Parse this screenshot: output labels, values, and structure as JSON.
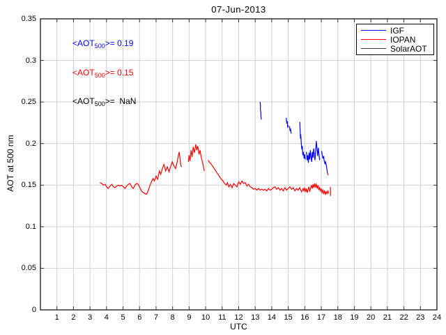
{
  "title": "07-Jun-2013",
  "axes": {
    "xlabel": "UTC",
    "ylabel": "AOT at 500 nm",
    "xlim": [
      0,
      24
    ],
    "ylim": [
      0,
      0.35
    ],
    "xticks": [
      1,
      2,
      3,
      4,
      5,
      6,
      7,
      8,
      9,
      10,
      11,
      12,
      13,
      14,
      15,
      16,
      17,
      18,
      19,
      20,
      21,
      22,
      23,
      24
    ],
    "yticks": [
      0,
      0.05,
      0.1,
      0.15,
      0.2,
      0.25,
      0.3,
      0.35
    ],
    "yticklabels": [
      "0",
      "0.05",
      "0.1",
      "0.15",
      "0.2",
      "0.25",
      "0.3",
      "0.35"
    ],
    "grid_color": "#d0d0d0",
    "frame_color": "#333333",
    "background": "#ffffff"
  },
  "legend": {
    "position": "top-right",
    "items": [
      {
        "label": "IGF",
        "color": "#0000ff"
      },
      {
        "label": "IOPAN",
        "color": "#ff0000"
      },
      {
        "label": "SolarAOT",
        "color": "#404040"
      }
    ]
  },
  "annotations": [
    {
      "series": "IGF",
      "pre": "<AOT",
      "sub": "500",
      "post": ">= 0.19",
      "color": "#0000ff"
    },
    {
      "series": "IOPAN",
      "pre": "<AOT",
      "sub": "500",
      "post": ">= 0.15",
      "color": "#ff0000"
    },
    {
      "series": "SolarAOT",
      "pre": "<AOT",
      "sub": "500",
      "post": ">=  NaN",
      "color": "#000000"
    }
  ],
  "chart_data": {
    "type": "line",
    "title": "07-Jun-2013",
    "xlabel": "UTC",
    "ylabel": "AOT at 500 nm",
    "xlim": [
      0,
      24
    ],
    "ylim": [
      0,
      0.35
    ],
    "grid": true,
    "legend_position": "top-right",
    "series": [
      {
        "name": "IGF",
        "color": "#0000ff",
        "mean_aot_500": 0.19,
        "segments": [
          [
            [
              13.3,
              0.25
            ],
            [
              13.32,
              0.245
            ],
            [
              13.31,
              0.241
            ],
            [
              13.34,
              0.237
            ],
            [
              13.35,
              0.232
            ],
            [
              13.37,
              0.229
            ]
          ],
          [
            [
              14.88,
              0.231
            ],
            [
              14.91,
              0.224
            ],
            [
              14.94,
              0.227
            ],
            [
              14.97,
              0.219
            ],
            [
              15.0,
              0.222
            ]
          ],
          [
            [
              15.08,
              0.221
            ],
            [
              15.11,
              0.215
            ],
            [
              15.14,
              0.218
            ],
            [
              15.18,
              0.212
            ]
          ],
          [
            [
              15.7,
              0.226
            ],
            [
              15.72,
              0.215
            ],
            [
              15.74,
              0.206
            ],
            [
              15.76,
              0.211
            ],
            [
              15.79,
              0.199
            ],
            [
              15.82,
              0.193
            ],
            [
              15.85,
              0.197
            ],
            [
              15.88,
              0.186
            ],
            [
              15.92,
              0.19
            ],
            [
              15.96,
              0.182
            ],
            [
              16.0,
              0.187
            ],
            [
              16.04,
              0.181
            ]
          ],
          [
            [
              16.1,
              0.19
            ],
            [
              16.14,
              0.18
            ],
            [
              16.18,
              0.186
            ],
            [
              16.22,
              0.177
            ],
            [
              16.26,
              0.189
            ],
            [
              16.3,
              0.181
            ],
            [
              16.34,
              0.192
            ],
            [
              16.38,
              0.184
            ],
            [
              16.42,
              0.178
            ],
            [
              16.46,
              0.19
            ],
            [
              16.5,
              0.183
            ],
            [
              16.54,
              0.194
            ],
            [
              16.58,
              0.186
            ],
            [
              16.62,
              0.18
            ],
            [
              16.66,
              0.192
            ],
            [
              16.7,
              0.203
            ],
            [
              16.74,
              0.194
            ],
            [
              16.78,
              0.185
            ],
            [
              16.82,
              0.195
            ],
            [
              16.86,
              0.187
            ],
            [
              16.9,
              0.18
            ]
          ],
          [
            [
              17.02,
              0.191
            ],
            [
              17.06,
              0.186
            ],
            [
              17.1,
              0.182
            ],
            [
              17.14,
              0.185
            ],
            [
              17.18,
              0.179
            ],
            [
              17.22,
              0.176
            ],
            [
              17.26,
              0.178
            ],
            [
              17.3,
              0.174
            ],
            [
              17.33,
              0.17
            ],
            [
              17.36,
              0.166
            ],
            [
              17.38,
              0.164
            ]
          ]
        ]
      },
      {
        "name": "IOPAN",
        "color": "#ff0000",
        "mean_aot_500": 0.15,
        "segments": [
          [
            [
              3.6,
              0.153
            ],
            [
              3.72,
              0.152
            ],
            [
              3.8,
              0.15
            ],
            [
              3.92,
              0.151
            ],
            [
              4.0,
              0.148
            ],
            [
              4.1,
              0.146
            ],
            [
              4.22,
              0.149
            ],
            [
              4.32,
              0.151
            ],
            [
              4.42,
              0.148
            ],
            [
              4.52,
              0.147
            ],
            [
              4.62,
              0.149
            ],
            [
              4.72,
              0.15
            ],
            [
              4.82,
              0.149
            ],
            [
              4.92,
              0.15
            ],
            [
              5.02,
              0.148
            ],
            [
              5.12,
              0.146
            ],
            [
              5.22,
              0.149
            ],
            [
              5.32,
              0.151
            ],
            [
              5.42,
              0.152
            ],
            [
              5.52,
              0.148
            ],
            [
              5.62,
              0.146
            ],
            [
              5.72,
              0.15
            ],
            [
              5.82,
              0.152
            ],
            [
              5.92,
              0.151
            ],
            [
              6.02,
              0.147
            ],
            [
              6.12,
              0.143
            ],
            [
              6.22,
              0.141
            ],
            [
              6.32,
              0.14
            ],
            [
              6.42,
              0.139
            ],
            [
              6.52,
              0.143
            ],
            [
              6.62,
              0.149
            ],
            [
              6.72,
              0.154
            ],
            [
              6.82,
              0.158
            ],
            [
              6.9,
              0.155
            ],
            [
              7.0,
              0.161
            ],
            [
              7.1,
              0.157
            ],
            [
              7.2,
              0.167
            ],
            [
              7.28,
              0.163
            ],
            [
              7.38,
              0.17
            ],
            [
              7.48,
              0.175
            ],
            [
              7.58,
              0.167
            ],
            [
              7.68,
              0.172
            ],
            [
              7.78,
              0.166
            ],
            [
              7.88,
              0.172
            ],
            [
              7.98,
              0.178
            ],
            [
              8.08,
              0.173
            ],
            [
              8.18,
              0.17
            ],
            [
              8.28,
              0.178
            ],
            [
              8.4,
              0.19
            ],
            [
              8.5,
              0.174
            ],
            [
              8.55,
              0.172
            ]
          ],
          [
            [
              8.95,
              0.178
            ],
            [
              9.0,
              0.186
            ],
            [
              9.05,
              0.179
            ],
            [
              9.12,
              0.192
            ],
            [
              9.18,
              0.184
            ],
            [
              9.25,
              0.196
            ],
            [
              9.32,
              0.189
            ],
            [
              9.4,
              0.199
            ],
            [
              9.46,
              0.192
            ],
            [
              9.52,
              0.197
            ],
            [
              9.6,
              0.187
            ],
            [
              9.66,
              0.192
            ],
            [
              9.74,
              0.183
            ],
            [
              9.82,
              0.177
            ],
            [
              9.92,
              0.167
            ]
          ],
          [
            [
              10.15,
              0.18
            ],
            [
              10.25,
              0.177
            ],
            [
              10.35,
              0.175
            ],
            [
              10.45,
              0.172
            ],
            [
              10.55,
              0.169
            ],
            [
              10.65,
              0.166
            ],
            [
              10.75,
              0.163
            ],
            [
              10.85,
              0.16
            ],
            [
              10.95,
              0.157
            ],
            [
              11.05,
              0.155
            ],
            [
              11.15,
              0.152
            ],
            [
              11.25,
              0.15
            ],
            [
              11.32,
              0.153
            ],
            [
              11.4,
              0.148
            ],
            [
              11.5,
              0.151
            ],
            [
              11.6,
              0.147
            ],
            [
              11.7,
              0.152
            ],
            [
              11.8,
              0.15
            ],
            [
              11.9,
              0.148
            ],
            [
              12.0,
              0.154
            ],
            [
              12.1,
              0.151
            ],
            [
              12.2,
              0.155
            ],
            [
              12.3,
              0.152
            ],
            [
              12.4,
              0.153
            ],
            [
              12.5,
              0.149
            ],
            [
              12.6,
              0.151
            ],
            [
              12.7,
              0.148
            ],
            [
              12.8,
              0.147
            ],
            [
              12.9,
              0.145
            ],
            [
              13.0,
              0.146
            ],
            [
              13.1,
              0.144
            ],
            [
              13.2,
              0.146
            ],
            [
              13.3,
              0.144
            ],
            [
              13.4,
              0.145
            ],
            [
              13.5,
              0.144
            ],
            [
              13.6,
              0.145
            ],
            [
              13.7,
              0.143
            ],
            [
              13.8,
              0.146
            ],
            [
              13.9,
              0.144
            ],
            [
              14.0,
              0.145
            ],
            [
              14.1,
              0.147
            ],
            [
              14.2,
              0.148
            ],
            [
              14.3,
              0.145
            ],
            [
              14.4,
              0.147
            ],
            [
              14.5,
              0.144
            ],
            [
              14.6,
              0.146
            ],
            [
              14.7,
              0.143
            ],
            [
              14.8,
              0.147
            ],
            [
              14.9,
              0.144
            ],
            [
              15.0,
              0.146
            ],
            [
              15.1,
              0.148
            ],
            [
              15.2,
              0.145
            ],
            [
              15.3,
              0.147
            ],
            [
              15.4,
              0.143
            ],
            [
              15.5,
              0.146
            ],
            [
              15.6,
              0.144
            ],
            [
              15.7,
              0.147
            ],
            [
              15.8,
              0.142
            ],
            [
              15.9,
              0.146
            ],
            [
              15.95,
              0.143
            ],
            [
              16.0,
              0.147
            ],
            [
              16.05,
              0.142
            ],
            [
              16.1,
              0.146
            ],
            [
              16.15,
              0.141
            ],
            [
              16.2,
              0.145
            ],
            [
              16.25,
              0.148
            ],
            [
              16.3,
              0.142
            ],
            [
              16.35,
              0.146
            ],
            [
              16.4,
              0.15
            ],
            [
              16.45,
              0.146
            ],
            [
              16.5,
              0.151
            ],
            [
              16.55,
              0.147
            ],
            [
              16.6,
              0.152
            ],
            [
              16.65,
              0.148
            ],
            [
              16.7,
              0.151
            ],
            [
              16.75,
              0.146
            ],
            [
              16.8,
              0.15
            ],
            [
              16.85,
              0.144
            ],
            [
              16.9,
              0.147
            ],
            [
              16.95,
              0.143
            ],
            [
              17.0,
              0.146
            ],
            [
              17.05,
              0.141
            ],
            [
              17.1,
              0.144
            ],
            [
              17.15,
              0.14
            ],
            [
              17.2,
              0.143
            ],
            [
              17.25,
              0.139
            ],
            [
              17.3,
              0.142
            ],
            [
              17.35,
              0.14
            ],
            [
              17.4,
              0.143
            ],
            [
              17.45,
              0.14
            ]
          ],
          [
            [
              17.39,
              0.164
            ],
            [
              17.41,
              0.162
            ]
          ],
          [
            [
              17.55,
              0.148
            ],
            [
              17.56,
              0.137
            ]
          ]
        ]
      },
      {
        "name": "SolarAOT",
        "color": "#404040",
        "mean_aot_500": "NaN",
        "segments": []
      }
    ]
  }
}
